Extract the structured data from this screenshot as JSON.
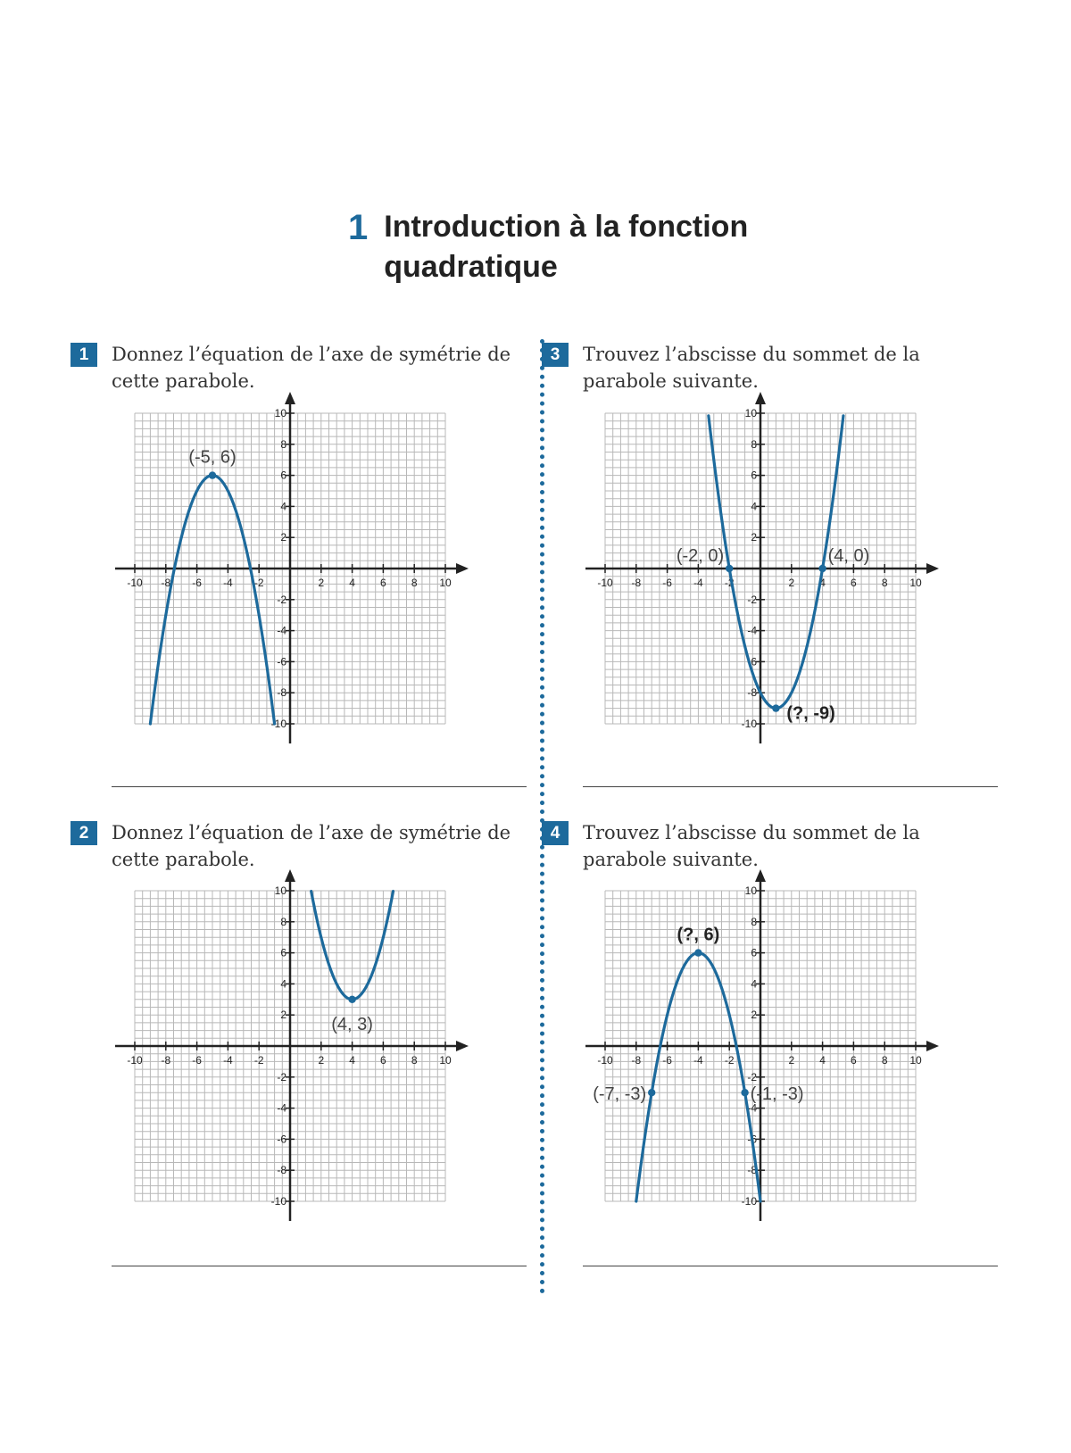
{
  "chapter": {
    "number": "1",
    "title": "Introduction à la fonction quadratique"
  },
  "exercises": [
    {
      "number": "1",
      "text": "Donnez l’équation de l’axe de symétrie de cette parabole."
    },
    {
      "number": "2",
      "text": "Donnez l’équation de l’axe de symétrie de cette parabole."
    },
    {
      "number": "3",
      "text": "Trouvez l’abscisse du sommet de la parabole suivante."
    },
    {
      "number": "4",
      "text": "Trouvez l’abscisse du sommet de la parabole suivante."
    }
  ],
  "graph": {
    "xlim": [
      -10,
      10
    ],
    "ylim": [
      -10,
      10
    ],
    "x_ticks": [
      "-10",
      "-8",
      "-6",
      "-4",
      "-2",
      "2",
      "4",
      "6",
      "8",
      "10"
    ],
    "y_ticks": [
      "10",
      "8",
      "6",
      "4",
      "2",
      "-2",
      "-4",
      "-6",
      "-8",
      "-10"
    ],
    "curve_color": "#1d6a9c",
    "grid_color": "#b8b8b8"
  },
  "chart_data": [
    {
      "type": "line",
      "exercise": "1",
      "curve": {
        "a": -1,
        "h": -5,
        "k": 6
      },
      "points": [
        {
          "x": -5,
          "y": 6,
          "label": "(-5, 6)",
          "marker": true,
          "bold": false
        }
      ]
    },
    {
      "type": "line",
      "exercise": "2",
      "curve": {
        "a": 1,
        "h": 4,
        "k": 3
      },
      "points": [
        {
          "x": 4,
          "y": 3,
          "label": "(4, 3)",
          "marker": true,
          "bold": false
        }
      ]
    },
    {
      "type": "line",
      "exercise": "3",
      "curve": {
        "a": 1,
        "h": 1,
        "k": -9
      },
      "points": [
        {
          "x": -2,
          "y": 0,
          "label": "(-2, 0)",
          "marker": true,
          "bold": false
        },
        {
          "x": 4,
          "y": 0,
          "label": "(4, 0)",
          "marker": true,
          "bold": false
        },
        {
          "x": 1,
          "y": -9,
          "label": "(?, -9)",
          "marker": true,
          "bold": true
        }
      ]
    },
    {
      "type": "line",
      "exercise": "4",
      "curve": {
        "a": -1,
        "h": -4,
        "k": 6
      },
      "points": [
        {
          "x": -4,
          "y": 6,
          "label": "(?, 6)",
          "marker": true,
          "bold": true
        },
        {
          "x": -7,
          "y": -3,
          "label": "(-7, -3)",
          "marker": true,
          "bold": false
        },
        {
          "x": -1,
          "y": -3,
          "label": "(-1, -3)",
          "marker": true,
          "bold": false
        }
      ]
    }
  ]
}
